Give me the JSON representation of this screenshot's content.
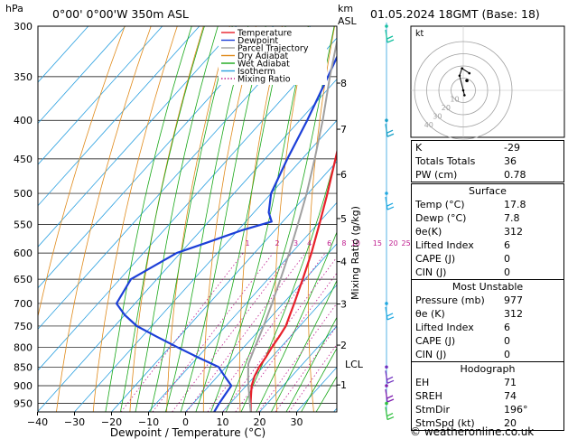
{
  "header": {
    "pressure_unit": "hPa",
    "location": "0°00' 0°00'W 350m ASL",
    "height_unit_top": "km",
    "height_unit_bottom": "ASL",
    "datetime": "01.05.2024 18GMT (Base: 18)"
  },
  "chart_data": {
    "type": "line",
    "title": "",
    "xlabel": "Dewpoint / Temperature (°C)",
    "ylabel": "hPa",
    "secondary_ylabel": "Mixing Ratio (g/kg)",
    "x_ticks": [
      -40,
      -30,
      -20,
      -10,
      0,
      10,
      20,
      30
    ],
    "xlim": [
      -40,
      40
    ],
    "pressure_ticks": [
      300,
      350,
      400,
      450,
      500,
      550,
      600,
      650,
      700,
      750,
      800,
      850,
      900,
      950
    ],
    "ylim": [
      300,
      975
    ],
    "yscale": "log",
    "km_ticks": [
      {
        "label": "8",
        "p": 357
      },
      {
        "label": "7",
        "p": 411
      },
      {
        "label": "6",
        "p": 472
      },
      {
        "label": "5",
        "p": 540
      },
      {
        "label": "4",
        "p": 616
      },
      {
        "label": "3",
        "p": 701
      },
      {
        "label": "2",
        "p": 795
      },
      {
        "label": "1",
        "p": 898
      }
    ],
    "lcl": {
      "label": "LCL",
      "p": 842
    },
    "mixing_ratio_labels": [
      "1",
      "2",
      "3",
      "4",
      "6",
      "8",
      "10",
      "15",
      "20",
      "25"
    ],
    "mixing_ratio_values": [
      1,
      2,
      3,
      4,
      6,
      8,
      10,
      15,
      20,
      25
    ],
    "mixing_label_p": 590,
    "legend": {
      "position": "top-right of plot",
      "entries": [
        {
          "name": "Temperature",
          "color": "#e8202a",
          "style": "solid"
        },
        {
          "name": "Dewpoint",
          "color": "#1c3fd8",
          "style": "solid"
        },
        {
          "name": "Parcel Trajectory",
          "color": "#a0a0a0",
          "style": "solid"
        },
        {
          "name": "Dry Adiabat",
          "color": "#e08a1a",
          "style": "solid"
        },
        {
          "name": "Wet Adiabat",
          "color": "#18a818",
          "style": "solid"
        },
        {
          "name": "Isotherm",
          "color": "#2aa0e0",
          "style": "solid"
        },
        {
          "name": "Mixing Ratio",
          "color": "#c02090",
          "style": "dotted"
        }
      ]
    },
    "series": [
      {
        "name": "Temperature",
        "color": "#e8202a",
        "width": 2.2,
        "points": [
          [
            977,
            17.8
          ],
          [
            950,
            15.5
          ],
          [
            925,
            13.5
          ],
          [
            900,
            11.5
          ],
          [
            875,
            10
          ],
          [
            850,
            9
          ],
          [
            825,
            8.4
          ],
          [
            800,
            7.6
          ],
          [
            775,
            7.0
          ],
          [
            750,
            6.2
          ],
          [
            725,
            4.6
          ],
          [
            700,
            3.0
          ],
          [
            650,
            -0.6
          ],
          [
            600,
            -4.6
          ],
          [
            550,
            -9.4
          ],
          [
            500,
            -14.8
          ],
          [
            450,
            -21
          ],
          [
            400,
            -28
          ],
          [
            350,
            -36.5
          ],
          [
            320,
            -41.5
          ],
          [
            300,
            -44.5
          ]
        ]
      },
      {
        "name": "Dewpoint",
        "color": "#1c3fd8",
        "width": 2.2,
        "points": [
          [
            977,
            7.8
          ],
          [
            950,
            7
          ],
          [
            925,
            6.5
          ],
          [
            900,
            6
          ],
          [
            875,
            2
          ],
          [
            850,
            -2
          ],
          [
            825,
            -10
          ],
          [
            800,
            -18
          ],
          [
            775,
            -26
          ],
          [
            750,
            -34
          ],
          [
            725,
            -40
          ],
          [
            700,
            -45
          ],
          [
            650,
            -47
          ],
          [
            600,
            -41
          ],
          [
            580,
            -35
          ],
          [
            560,
            -29
          ],
          [
            545,
            -23
          ],
          [
            530,
            -26
          ],
          [
            500,
            -30
          ],
          [
            450,
            -34
          ],
          [
            400,
            -38
          ],
          [
            350,
            -43
          ],
          [
            300,
            -49
          ]
        ]
      },
      {
        "name": "Parcel Trajectory",
        "color": "#a0a0a0",
        "width": 2.0,
        "points": [
          [
            977,
            17.8
          ],
          [
            950,
            15.3
          ],
          [
            925,
            13
          ],
          [
            900,
            10.6
          ],
          [
            875,
            8.3
          ],
          [
            842,
            5.3
          ],
          [
            800,
            3.0
          ],
          [
            750,
            0.2
          ],
          [
            700,
            -3.0
          ],
          [
            650,
            -6.6
          ],
          [
            600,
            -10.6
          ],
          [
            550,
            -15.2
          ],
          [
            500,
            -20.4
          ],
          [
            450,
            -26.6
          ],
          [
            400,
            -33.8
          ],
          [
            350,
            -42.5
          ],
          [
            300,
            -52
          ]
        ]
      }
    ]
  },
  "hodograph": {
    "unit_label": "kt",
    "ring_labels": [
      "10",
      "20",
      "30",
      "40"
    ],
    "points_uv": [
      [
        0,
        0
      ],
      [
        1,
        -4
      ],
      [
        -3,
        12
      ],
      [
        -1,
        18
      ],
      [
        5,
        14
      ]
    ],
    "storm_marker_uv": [
      3,
      8
    ]
  },
  "indices": [
    {
      "label": "K",
      "value": "-29"
    },
    {
      "label": "Totals Totals",
      "value": "36"
    },
    {
      "label": "PW (cm)",
      "value": "0.78"
    }
  ],
  "surface": {
    "title": "Surface",
    "rows": [
      {
        "label": "Temp (°C)",
        "value": "17.8"
      },
      {
        "label": "Dewp (°C)",
        "value": "7.8"
      },
      {
        "label": "θe(K)",
        "value": "312"
      },
      {
        "label": "Lifted Index",
        "value": "6"
      },
      {
        "label": "CAPE (J)",
        "value": "0"
      },
      {
        "label": "CIN (J)",
        "value": "0"
      }
    ]
  },
  "most_unstable": {
    "title": "Most Unstable",
    "rows": [
      {
        "label": "Pressure (mb)",
        "value": "977"
      },
      {
        "label": "θe (K)",
        "value": "312"
      },
      {
        "label": "Lifted Index",
        "value": "6"
      },
      {
        "label": "CAPE (J)",
        "value": "0"
      },
      {
        "label": "CIN (J)",
        "value": "0"
      }
    ]
  },
  "hodograph_stats": {
    "title": "Hodograph",
    "rows": [
      {
        "label": "EH",
        "value": "71"
      },
      {
        "label": "SREH",
        "value": "74"
      },
      {
        "label": "StmDir",
        "value": "196°"
      },
      {
        "label": "StmSpd (kt)",
        "value": "20"
      }
    ]
  },
  "wind_barbs": [
    {
      "p": 300,
      "color": "#18c0a0"
    },
    {
      "p": 400,
      "color": "#18a0c8"
    },
    {
      "p": 500,
      "color": "#20a8e0"
    },
    {
      "p": 700,
      "color": "#20a8e0"
    },
    {
      "p": 850,
      "color": "#7030c0"
    },
    {
      "p": 900,
      "color": "#8020b0"
    },
    {
      "p": 950,
      "color": "#30c040"
    }
  ],
  "credit": "© weatheronline.co.uk"
}
